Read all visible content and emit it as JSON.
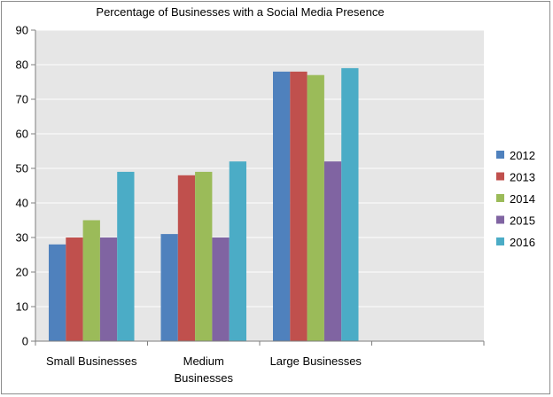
{
  "chart_data": {
    "type": "bar",
    "title": "Percentage of Businesses with a Social Media Presence",
    "categories": [
      [
        "Small Businesses"
      ],
      [
        "Medium",
        "Businesses"
      ],
      [
        "Large Businesses"
      ],
      [
        ""
      ]
    ],
    "series": [
      {
        "name": "2012",
        "color": "#4f81bd",
        "values": [
          28,
          31,
          78,
          null
        ]
      },
      {
        "name": "2013",
        "color": "#c0504d",
        "values": [
          30,
          48,
          78,
          null
        ]
      },
      {
        "name": "2014",
        "color": "#9bbb59",
        "values": [
          35,
          49,
          77,
          null
        ]
      },
      {
        "name": "2015",
        "color": "#8064a2",
        "values": [
          30,
          30,
          52,
          null
        ]
      },
      {
        "name": "2016",
        "color": "#4bacc6",
        "values": [
          49,
          52,
          79,
          null
        ]
      }
    ],
    "yticks": [
      "0",
      "10",
      "20",
      "30",
      "40",
      "50",
      "60",
      "70",
      "80",
      "90"
    ],
    "ylim": [
      0,
      90
    ],
    "grid": true,
    "legend_position": "right",
    "plot_background": "#e6e6e6"
  }
}
